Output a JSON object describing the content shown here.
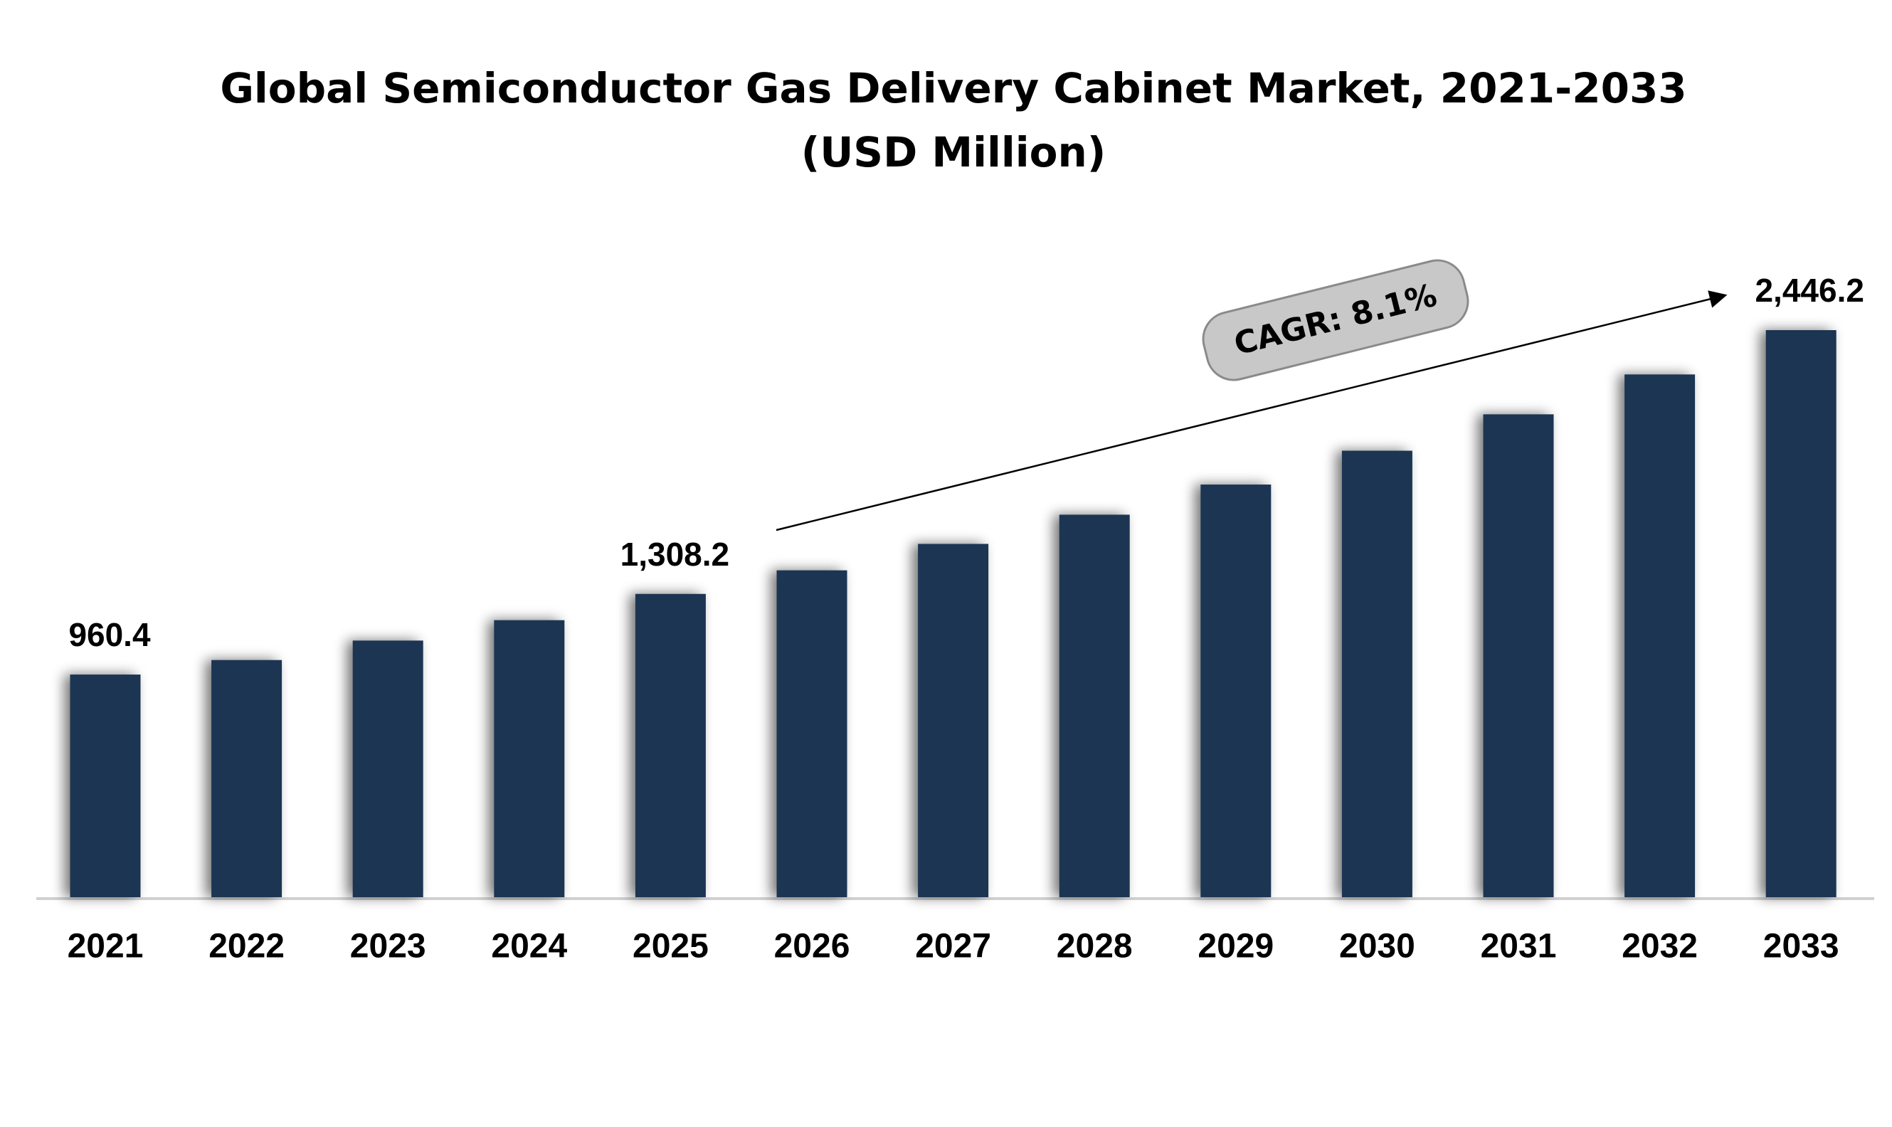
{
  "chart_data": {
    "type": "bar",
    "title": "Global Semiconductor Gas Delivery Cabinet Market, 2021-2033",
    "subtitle": "(USD Million)",
    "categories": [
      "2021",
      "2022",
      "2023",
      "2024",
      "2025",
      "2026",
      "2027",
      "2028",
      "2029",
      "2030",
      "2031",
      "2032",
      "2033"
    ],
    "values": [
      960.4,
      1023,
      1107,
      1195,
      1308.2,
      1410,
      1524,
      1650,
      1780,
      1926,
      2083,
      2255,
      2446.2
    ],
    "value_labels": [
      "960.4",
      null,
      null,
      null,
      "1,308.2",
      null,
      null,
      null,
      null,
      null,
      null,
      null,
      "2,446.2"
    ],
    "color": "#1b3552",
    "annotation": "CAGR: 8.1%"
  }
}
